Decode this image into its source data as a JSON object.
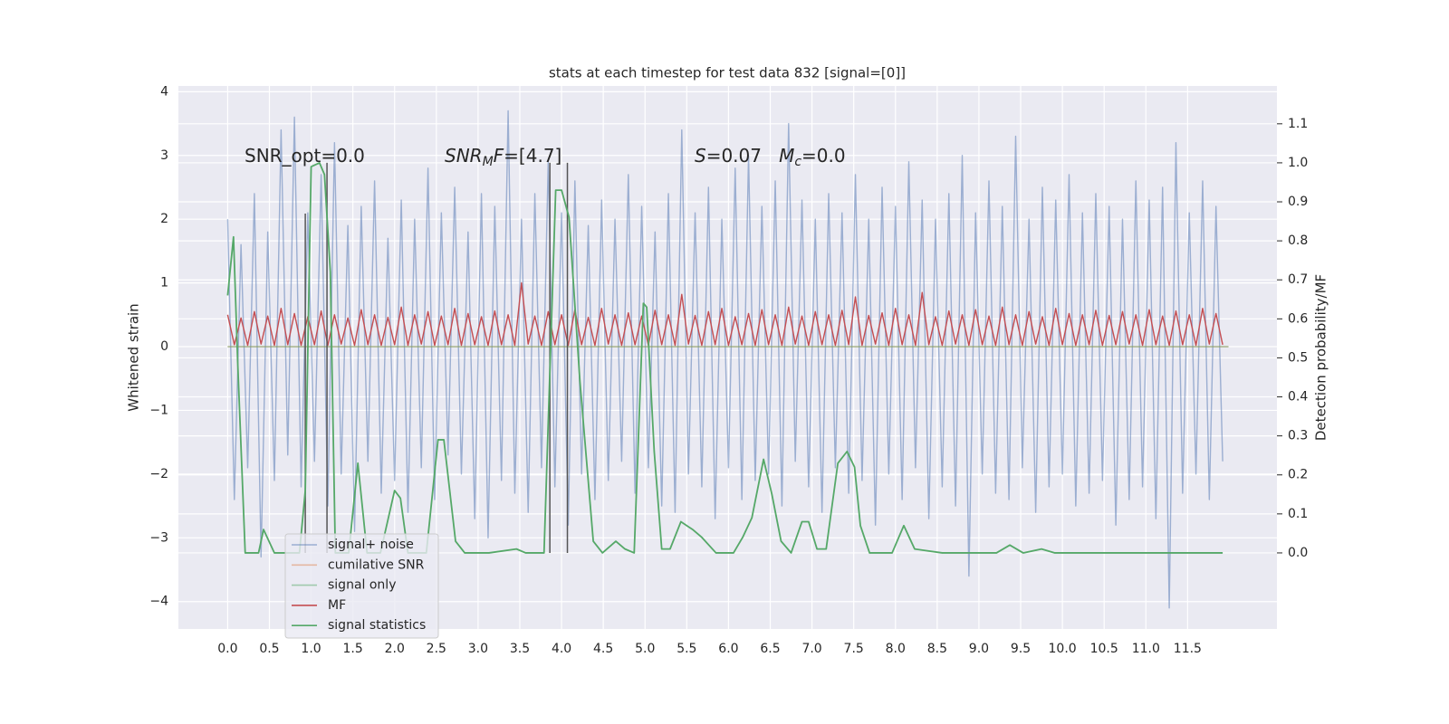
{
  "chart_data": {
    "type": "line",
    "title": "stats at each timestep for test data 832 [signal=[0]]",
    "ylabel": "Whitened strain",
    "y2label": "Detection probability/MF",
    "xlim": [
      -0.59,
      12.57
    ],
    "ylim": [
      -4.43,
      4.09
    ],
    "y2lim": [
      -0.195,
      1.197
    ],
    "grid": true,
    "legend": "lower left",
    "xticks": [
      {
        "value": 0,
        "label": "0.0"
      },
      0.5,
      {
        "value": 1,
        "label": "1.0"
      },
      1.5,
      {
        "value": 2,
        "label": "2.0"
      },
      2.5,
      {
        "value": 3,
        "label": "3.0"
      },
      3.5,
      {
        "value": 4,
        "label": "4.0"
      },
      4.5,
      {
        "value": 5,
        "label": "5.0"
      },
      5.5,
      {
        "value": 6,
        "label": "6.0"
      },
      6.5,
      {
        "value": 7,
        "label": "7.0"
      },
      7.5,
      {
        "value": 8,
        "label": "8.0"
      },
      8.5,
      {
        "value": 9,
        "label": "9.0"
      },
      9.5,
      {
        "value": 10,
        "label": "10.0"
      },
      10.5,
      {
        "value": 11,
        "label": "11.0"
      },
      11.5
    ],
    "yticks": [
      {
        "value": -4,
        "label": "−4"
      },
      {
        "value": -3,
        "label": "−3"
      },
      {
        "value": -2,
        "label": "−2"
      },
      {
        "value": -1,
        "label": "−1"
      },
      0,
      1,
      2,
      3,
      4
    ],
    "y2ticks": [
      {
        "value": 0,
        "label": "0.0"
      },
      0.1,
      0.2,
      0.3,
      0.4,
      0.5,
      0.6,
      0.7,
      0.8,
      0.9,
      {
        "value": 1,
        "label": "1.0"
      },
      1.1
    ],
    "annotations": [
      {
        "parts": [
          {
            "text": "SNR_opt=0.0"
          }
        ]
      },
      {
        "parts": [
          {
            "text": "SNR",
            "italic": true
          },
          {
            "text": "M",
            "italic": true,
            "sub": true
          },
          {
            "text": "F",
            "italic": true
          },
          {
            "text": "=[4.7]"
          }
        ]
      },
      {
        "parts": [
          {
            "text": "S",
            "italic": true
          },
          {
            "text": "=0.07   "
          },
          {
            "text": "M",
            "italic": true
          },
          {
            "text": "c",
            "italic": true,
            "sub": true
          },
          {
            "text": "=0.0"
          }
        ]
      }
    ],
    "vlines": [
      {
        "x": 0.93,
        "ymax": 0.87
      },
      {
        "x": 1.19,
        "ymax": 1.0
      },
      {
        "x": 3.86,
        "ymax": 1.0
      },
      {
        "x": 4.07,
        "ymax": 1.0
      }
    ],
    "vline_color": "#555555",
    "x": [
      0,
      0.08,
      0.16,
      0.24,
      0.32,
      0.4,
      0.48,
      0.56,
      0.64,
      0.72,
      0.8,
      0.88,
      0.96,
      1.04,
      1.12,
      1.2,
      1.28,
      1.36,
      1.44,
      1.52,
      1.6,
      1.68,
      1.76,
      1.84,
      1.92,
      2,
      2.08,
      2.16,
      2.24,
      2.32,
      2.4,
      2.48,
      2.56,
      2.64,
      2.72,
      2.8,
      2.88,
      2.96,
      3.04,
      3.12,
      3.2,
      3.28,
      3.36,
      3.44,
      3.52,
      3.6,
      3.68,
      3.76,
      3.84,
      3.92,
      4,
      4.08,
      4.16,
      4.24,
      4.32,
      4.4,
      4.48,
      4.56,
      4.64,
      4.72,
      4.8,
      4.88,
      4.96,
      5.04,
      5.12,
      5.2,
      5.28,
      5.36,
      5.44,
      5.52,
      5.6,
      5.68,
      5.76,
      5.84,
      5.92,
      6,
      6.08,
      6.16,
      6.24,
      6.32,
      6.4,
      6.48,
      6.56,
      6.64,
      6.72,
      6.8,
      6.88,
      6.96,
      7.04,
      7.12,
      7.2,
      7.28,
      7.36,
      7.44,
      7.52,
      7.6,
      7.68,
      7.76,
      7.84,
      7.92,
      8,
      8.08,
      8.16,
      8.24,
      8.32,
      8.4,
      8.48,
      8.56,
      8.64,
      8.72,
      8.8,
      8.88,
      8.96,
      9.04,
      9.12,
      9.2,
      9.28,
      9.36,
      9.44,
      9.52,
      9.6,
      9.68,
      9.76,
      9.84,
      9.92,
      10,
      10.08,
      10.16,
      10.24,
      10.32,
      10.4,
      10.48,
      10.56,
      10.64,
      10.72,
      10.8,
      10.88,
      10.96,
      11.04,
      11.12,
      11.2,
      11.28,
      11.36,
      11.44,
      11.52,
      11.6,
      11.68,
      11.76,
      11.84,
      11.92
    ],
    "series": [
      {
        "name": "signal+ noise",
        "color": "#4c72b0",
        "opacity": 0.5,
        "values": [
          2.0,
          -2.4,
          1.6,
          -1.9,
          2.4,
          -3.3,
          1.8,
          -2.1,
          3.4,
          -1.7,
          3.6,
          -2.2,
          2.1,
          -1.8,
          2.7,
          -2.5,
          3.2,
          -2.0,
          1.9,
          -2.9,
          2.2,
          -1.8,
          2.6,
          -2.3,
          1.7,
          -2.1,
          2.3,
          -2.6,
          2.0,
          -1.9,
          2.8,
          -2.4,
          2.1,
          -1.7,
          2.5,
          -2.0,
          1.8,
          -2.7,
          2.4,
          -3.0,
          2.2,
          -2.1,
          3.7,
          -2.3,
          2.0,
          -2.6,
          2.4,
          -1.9,
          2.9,
          -2.2,
          2.1,
          -2.8,
          2.6,
          -2.0,
          1.9,
          -2.4,
          2.3,
          -2.1,
          2.0,
          -1.8,
          2.7,
          -2.3,
          2.2,
          -1.9,
          1.8,
          -2.5,
          2.4,
          -2.6,
          3.4,
          -2.0,
          2.1,
          -2.2,
          2.5,
          -2.7,
          2.0,
          -1.9,
          2.8,
          -2.4,
          3.0,
          -2.1,
          2.2,
          -2.0,
          2.6,
          -2.5,
          3.5,
          -1.8,
          2.3,
          -2.2,
          2.0,
          -2.6,
          2.4,
          -1.9,
          2.1,
          -2.3,
          2.7,
          -2.1,
          2.0,
          -2.8,
          2.5,
          -2.0,
          2.2,
          -2.4,
          2.9,
          -1.9,
          2.3,
          -2.7,
          2.0,
          -2.2,
          2.4,
          -2.5,
          3.0,
          -3.6,
          2.1,
          -2.0,
          2.6,
          -2.3,
          2.2,
          -2.4,
          3.3,
          -1.9,
          2.0,
          -2.6,
          2.5,
          -2.2,
          2.3,
          -2.0,
          2.7,
          -2.5,
          2.1,
          -2.3,
          2.4,
          -2.1,
          2.2,
          -2.8,
          2.0,
          -2.4,
          2.6,
          -2.2,
          2.3,
          -2.7,
          2.5,
          -4.1,
          3.2,
          -2.3,
          2.1,
          -2.0,
          2.6,
          -2.4,
          2.2,
          -1.8
        ]
      },
      {
        "name": "cumilative SNR",
        "color": "#dd8452",
        "opacity": 0.5,
        "x": [
          0,
          11.99
        ],
        "values": [
          0,
          0
        ]
      },
      {
        "name": "signal only",
        "color": "#55a868",
        "opacity": 0.5,
        "x": [
          0,
          11.99
        ],
        "values": [
          0,
          0
        ]
      },
      {
        "name": "MF",
        "color": "#c44e52",
        "opacity": 1,
        "values": [
          0.5,
          0.03,
          0.45,
          0.02,
          0.55,
          0.04,
          0.48,
          0.02,
          0.6,
          0.03,
          0.52,
          0.02,
          0.47,
          0.03,
          0.56,
          0.02,
          0.5,
          0.04,
          0.45,
          0.02,
          0.58,
          0.03,
          0.5,
          0.02,
          0.46,
          0.03,
          0.62,
          0.02,
          0.5,
          0.04,
          0.55,
          0.02,
          0.48,
          0.03,
          0.6,
          0.02,
          0.52,
          0.03,
          0.47,
          0.02,
          0.56,
          0.03,
          0.5,
          0.02,
          1.0,
          0.04,
          0.48,
          0.02,
          0.55,
          0.03,
          0.5,
          0.02,
          0.58,
          0.03,
          0.46,
          0.02,
          0.6,
          0.04,
          0.5,
          0.02,
          0.53,
          0.03,
          0.48,
          0.02,
          0.57,
          0.03,
          0.5,
          0.02,
          0.82,
          0.04,
          0.49,
          0.02,
          0.55,
          0.03,
          0.6,
          0.02,
          0.47,
          0.03,
          0.52,
          0.02,
          0.58,
          0.03,
          0.5,
          0.02,
          0.62,
          0.04,
          0.48,
          0.02,
          0.55,
          0.03,
          0.5,
          0.02,
          0.57,
          0.03,
          0.78,
          0.02,
          0.49,
          0.04,
          0.53,
          0.02,
          0.6,
          0.03,
          0.5,
          0.02,
          0.85,
          0.03,
          0.47,
          0.02,
          0.56,
          0.04,
          0.5,
          0.02,
          0.58,
          0.03,
          0.48,
          0.02,
          0.62,
          0.03,
          0.5,
          0.02,
          0.55,
          0.04,
          0.47,
          0.02,
          0.6,
          0.03,
          0.52,
          0.02,
          0.5,
          0.03,
          0.57,
          0.02,
          0.49,
          0.03,
          0.55,
          0.04,
          0.5,
          0.02,
          0.58,
          0.03,
          0.48,
          0.02,
          0.56,
          0.03,
          0.5,
          0.02,
          0.6,
          0.04,
          0.52,
          0.03
        ]
      },
      {
        "name": "signal statistics",
        "color": "#55a868",
        "opacity": 1,
        "axis": "y2",
        "x": [
          0,
          0.07,
          0.12,
          0.21,
          0.37,
          0.43,
          0.56,
          0.86,
          0.93,
          1.0,
          1.1,
          1.16,
          1.23,
          1.29,
          1.45,
          1.56,
          1.67,
          1.83,
          2.0,
          2.07,
          2.16,
          2.38,
          2.52,
          2.59,
          2.73,
          2.84,
          3.13,
          3.46,
          3.57,
          3.79,
          3.93,
          4.0,
          4.09,
          4.22,
          4.38,
          4.49,
          4.65,
          4.76,
          4.87,
          4.98,
          5.02,
          5.11,
          5.2,
          5.3,
          5.43,
          5.57,
          5.68,
          5.85,
          6.06,
          6.17,
          6.28,
          6.42,
          6.52,
          6.63,
          6.75,
          6.88,
          6.96,
          7.06,
          7.17,
          7.31,
          7.42,
          7.51,
          7.58,
          7.69,
          7.96,
          8.1,
          8.23,
          8.56,
          9.21,
          9.37,
          9.53,
          9.75,
          9.91,
          11.92
        ],
        "values": [
          0.66,
          0.81,
          0.49,
          0,
          0,
          0.06,
          0,
          0,
          0.16,
          0.99,
          1.0,
          0.97,
          0.72,
          0,
          0,
          0.23,
          0,
          0,
          0.16,
          0.14,
          0,
          0,
          0.29,
          0.29,
          0.03,
          0,
          0,
          0.01,
          0,
          0,
          0.93,
          0.93,
          0.86,
          0.44,
          0.03,
          0,
          0.03,
          0.01,
          0,
          0.64,
          0.63,
          0.26,
          0.01,
          0.01,
          0.08,
          0.06,
          0.04,
          0,
          0,
          0.04,
          0.09,
          0.24,
          0.15,
          0.03,
          0,
          0.08,
          0.08,
          0.01,
          0.01,
          0.23,
          0.26,
          0.22,
          0.07,
          0,
          0,
          0.07,
          0.01,
          0,
          0,
          0.02,
          0,
          0.01,
          0,
          0
        ]
      }
    ]
  }
}
